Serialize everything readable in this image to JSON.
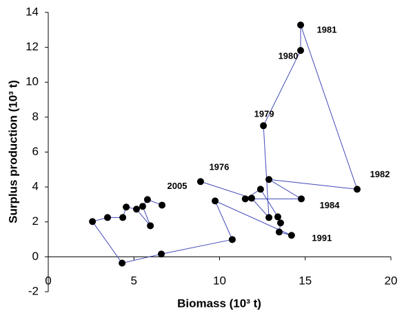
{
  "chart_data": {
    "type": "scatter-line",
    "x_label": "Biomass (10³ t)",
    "y_label": "Surplus production (10³ t)",
    "x": [
      8.89,
      11.87,
      12.88,
      12.56,
      14.73,
      14.73,
      18.03,
      12.88,
      14.77,
      11.5,
      12.39,
      13.4,
      13.56,
      13.48,
      14.2,
      9.74,
      10.74,
      6.6,
      4.31,
      2.58,
      3.46,
      4.35,
      4.55,
      5.15,
      5.96,
      5.51,
      5.79,
      6.64
    ],
    "values": [
      4.31,
      3.36,
      2.25,
      7.51,
      11.82,
      13.28,
      3.87,
      4.43,
      3.32,
      3.32,
      3.87,
      2.29,
      1.94,
      1.42,
      1.23,
      3.2,
      0.99,
      0.16,
      -0.36,
      2.02,
      2.25,
      2.25,
      2.85,
      2.73,
      1.78,
      2.89,
      3.28,
      2.96
    ],
    "point_labels": [
      "1976",
      null,
      null,
      "1979",
      "1980",
      "1981",
      "1982",
      null,
      "1984",
      null,
      null,
      null,
      null,
      null,
      "1991",
      null,
      null,
      null,
      null,
      null,
      null,
      null,
      null,
      null,
      null,
      null,
      null,
      "2005"
    ],
    "line_color": "#3f48b8",
    "marker_color": "#000000",
    "xlim": [
      0,
      20
    ],
    "xticks": [
      0,
      5,
      10,
      15,
      20
    ],
    "ylim": [
      -2,
      14
    ],
    "yticks": [
      -2,
      0,
      2,
      4,
      6,
      8,
      10,
      12,
      14
    ]
  }
}
